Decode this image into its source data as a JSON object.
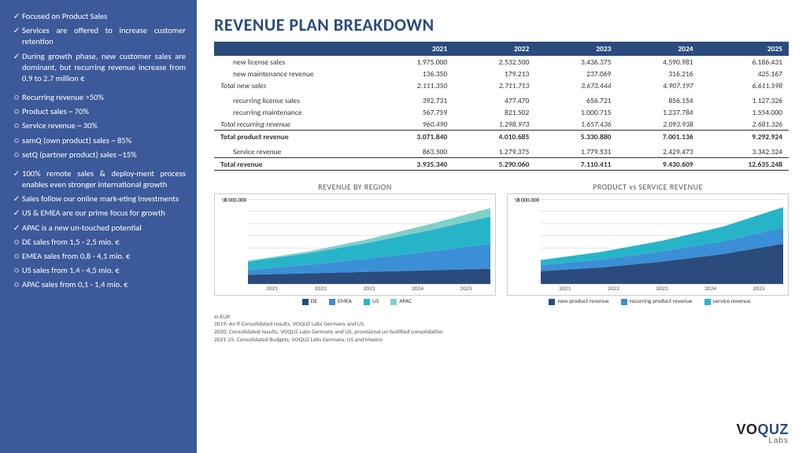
{
  "sidebar": {
    "bg": "#3c5a99",
    "items": [
      {
        "type": "check",
        "text": "Focused on Product Sales"
      },
      {
        "type": "check",
        "text": "Services are offered to increase customer retention"
      },
      {
        "type": "check",
        "text": "During growth phase, new customer sales are dominant, but recurring revenue increase from 0.9 to 2.7 million €",
        "gap": true
      },
      {
        "type": "circ",
        "text": "Recurring revenue >50%"
      },
      {
        "type": "circ",
        "text": "Product sales ~ 70%"
      },
      {
        "type": "circ",
        "text": "Service revenue ~ 30%"
      },
      {
        "type": "circ",
        "text": "samQ (own product) sales ~ 85%"
      },
      {
        "type": "circ",
        "text": "setQ (partner product) sales ~15%",
        "gap": true
      },
      {
        "type": "check",
        "text": "100% remote sales & deploy-ment process enables even stronger international growth"
      },
      {
        "type": "check",
        "text": "Sales follow our online mark-eting investments"
      },
      {
        "type": "check",
        "text": "US & EMEA are our prime focus for growth"
      },
      {
        "type": "check",
        "text": "APAC is a new un-touched potential"
      },
      {
        "type": "circ",
        "text": "DE sales from 1,5 - 2,5 mio. €"
      },
      {
        "type": "circ",
        "text": "EMEA sales from 0,8 - 4,1 mio. €"
      },
      {
        "type": "circ",
        "text": "US sales from 1,4 - 4,5 mio. €"
      },
      {
        "type": "circ",
        "text": "APAC sales from 0,1 - 1,4 mio. €"
      }
    ]
  },
  "title": "REVENUE PLAN BREAKDOWN",
  "table": {
    "header_bg": "#2a4b7c",
    "years": [
      "2021",
      "2022",
      "2023",
      "2024",
      "2025"
    ],
    "rows": [
      {
        "label": "new license sales",
        "vals": [
          "1.975.000",
          "2.532.500",
          "3.436.375",
          "4.590.981",
          "6.186.431"
        ]
      },
      {
        "label": "new maintenance revenue",
        "vals": [
          "136.350",
          "179.213",
          "237.069",
          "316.216",
          "425.167"
        ]
      },
      {
        "label": "Total new sales",
        "vals": [
          "2.111.350",
          "2.711.713",
          "3.673.444",
          "4.907.197",
          "6.611.598"
        ],
        "cls": "subtotal"
      },
      {
        "label": "",
        "vals": [
          "",
          "",
          "",
          "",
          ""
        ],
        "spacer": true
      },
      {
        "label": "recurring license sales",
        "vals": [
          "392.731",
          "477.470",
          "656.721",
          "856.154",
          "1.127.326"
        ]
      },
      {
        "label": "recurring maintenance",
        "vals": [
          "567.759",
          "821.502",
          "1.000.715",
          "1.237.784",
          "1.554.000"
        ]
      },
      {
        "label": "Total recurring revenue",
        "vals": [
          "960.490",
          "1.298.973",
          "1.657.436",
          "2.093.938",
          "2.681.326"
        ],
        "cls": "subtotal"
      },
      {
        "label": "Total product revenue",
        "vals": [
          "3.071.840",
          "4.010.685",
          "5.330.880",
          "7.001.136",
          "9.292.924"
        ],
        "cls": "bold tline"
      },
      {
        "label": "",
        "vals": [
          "",
          "",
          "",
          "",
          ""
        ],
        "spacer": true
      },
      {
        "label": "Service revenue",
        "vals": [
          "863.500",
          "1.279.375",
          "1.779.531",
          "2.429.473",
          "3.342.324"
        ]
      },
      {
        "label": "Total revenue",
        "vals": [
          "3.935.340",
          "5.290.060",
          "7.110.411",
          "9.430.609",
          "12.635.248"
        ],
        "cls": "bold tline bline"
      }
    ]
  },
  "chart1": {
    "title": "REVENUE BY REGION",
    "ymax": 14000000,
    "ytick": 2000000,
    "categories": [
      "2021",
      "2022",
      "2023",
      "2024",
      "2025"
    ],
    "series": [
      {
        "name": "DE",
        "color": "#2a4b7c",
        "vals": [
          1500000,
          1750000,
          2000000,
          2250000,
          2500000
        ]
      },
      {
        "name": "EMEA",
        "color": "#3b8fd6",
        "vals": [
          800000,
          1400000,
          2200000,
          3100000,
          4100000
        ]
      },
      {
        "name": "US",
        "color": "#28b4c8",
        "vals": [
          1400000,
          1900000,
          2600000,
          3500000,
          4500000
        ]
      },
      {
        "name": "APAC",
        "color": "#7ed0c9",
        "vals": [
          100000,
          300000,
          600000,
          1000000,
          1400000
        ]
      }
    ]
  },
  "chart2": {
    "title": "PRODUCT vs SERVICE REVENUE",
    "ymax": 14000000,
    "ytick": 2000000,
    "categories": [
      "2021",
      "2022",
      "2023",
      "2024",
      "2025"
    ],
    "series": [
      {
        "name": "new product revenue",
        "color": "#2a4b7c",
        "vals": [
          2111350,
          2711713,
          3673444,
          4907197,
          6611598
        ]
      },
      {
        "name": "recurring product revenue",
        "color": "#3b8fd6",
        "vals": [
          960490,
          1298973,
          1657436,
          2093938,
          2681326
        ]
      },
      {
        "name": "service revenue",
        "color": "#28b4c8",
        "vals": [
          863500,
          1279375,
          1779531,
          2429473,
          3342324
        ]
      }
    ]
  },
  "notes": [
    "In EUR",
    "2019: As-If Consolidated results, VOQUZ Labs Germany and US",
    "2020: Consolidated results, VOQUZ Labs Germany and US, provisional un-testified consolidation",
    "2021-25: Consolidated Budgets, VOQUZ Labs Germany, US and Mexico"
  ],
  "logo": {
    "t1a": "VO",
    "t1b": "QUZ",
    "t2": "Labs"
  }
}
